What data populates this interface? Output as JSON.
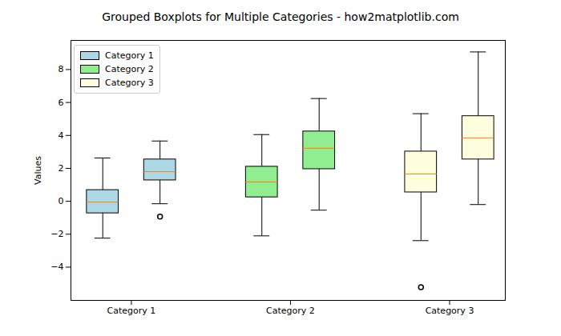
{
  "chart_data": {
    "type": "boxplot",
    "title": "Grouped Boxplots for Multiple Categories - how2matplotlib.com",
    "y_label": "Values",
    "categories": [
      "Category 1",
      "Category 2",
      "Category 3"
    ],
    "series": [
      {
        "name": "Category 1",
        "color": "#add8e6",
        "boxes": [
          {
            "whisker_low": -2.24,
            "q1": -0.73,
            "median": -0.05,
            "q3": 0.68,
            "whisker_high": 2.63,
            "outliers": []
          },
          {
            "whisker_low": -0.15,
            "q1": 1.27,
            "median": 1.8,
            "q3": 2.54,
            "whisker_high": 3.66,
            "outliers": [
              -0.93
            ]
          }
        ]
      },
      {
        "name": "Category 2",
        "color": "#90ee90",
        "boxes": [
          {
            "whisker_low": -2.1,
            "q1": 0.24,
            "median": 1.17,
            "q3": 2.1,
            "whisker_high": 4.05,
            "outliers": []
          },
          {
            "whisker_low": -0.54,
            "q1": 1.95,
            "median": 3.22,
            "q3": 4.24,
            "whisker_high": 6.24,
            "outliers": []
          }
        ]
      },
      {
        "name": "Category 3",
        "color": "#ffffe0",
        "boxes": [
          {
            "whisker_low": -2.39,
            "q1": 0.54,
            "median": 1.66,
            "q3": 3.02,
            "whisker_high": 5.32,
            "outliers": [
              -5.22
            ]
          },
          {
            "whisker_low": -0.2,
            "q1": 2.54,
            "median": 3.85,
            "q3": 5.17,
            "whisker_high": 9.07,
            "outliers": []
          }
        ]
      }
    ],
    "ylim": [
      -6.02,
      9.77
    ],
    "yticks": [
      -4,
      -2,
      0,
      2,
      4,
      6,
      8
    ],
    "grid": false,
    "legend": "upper left"
  }
}
